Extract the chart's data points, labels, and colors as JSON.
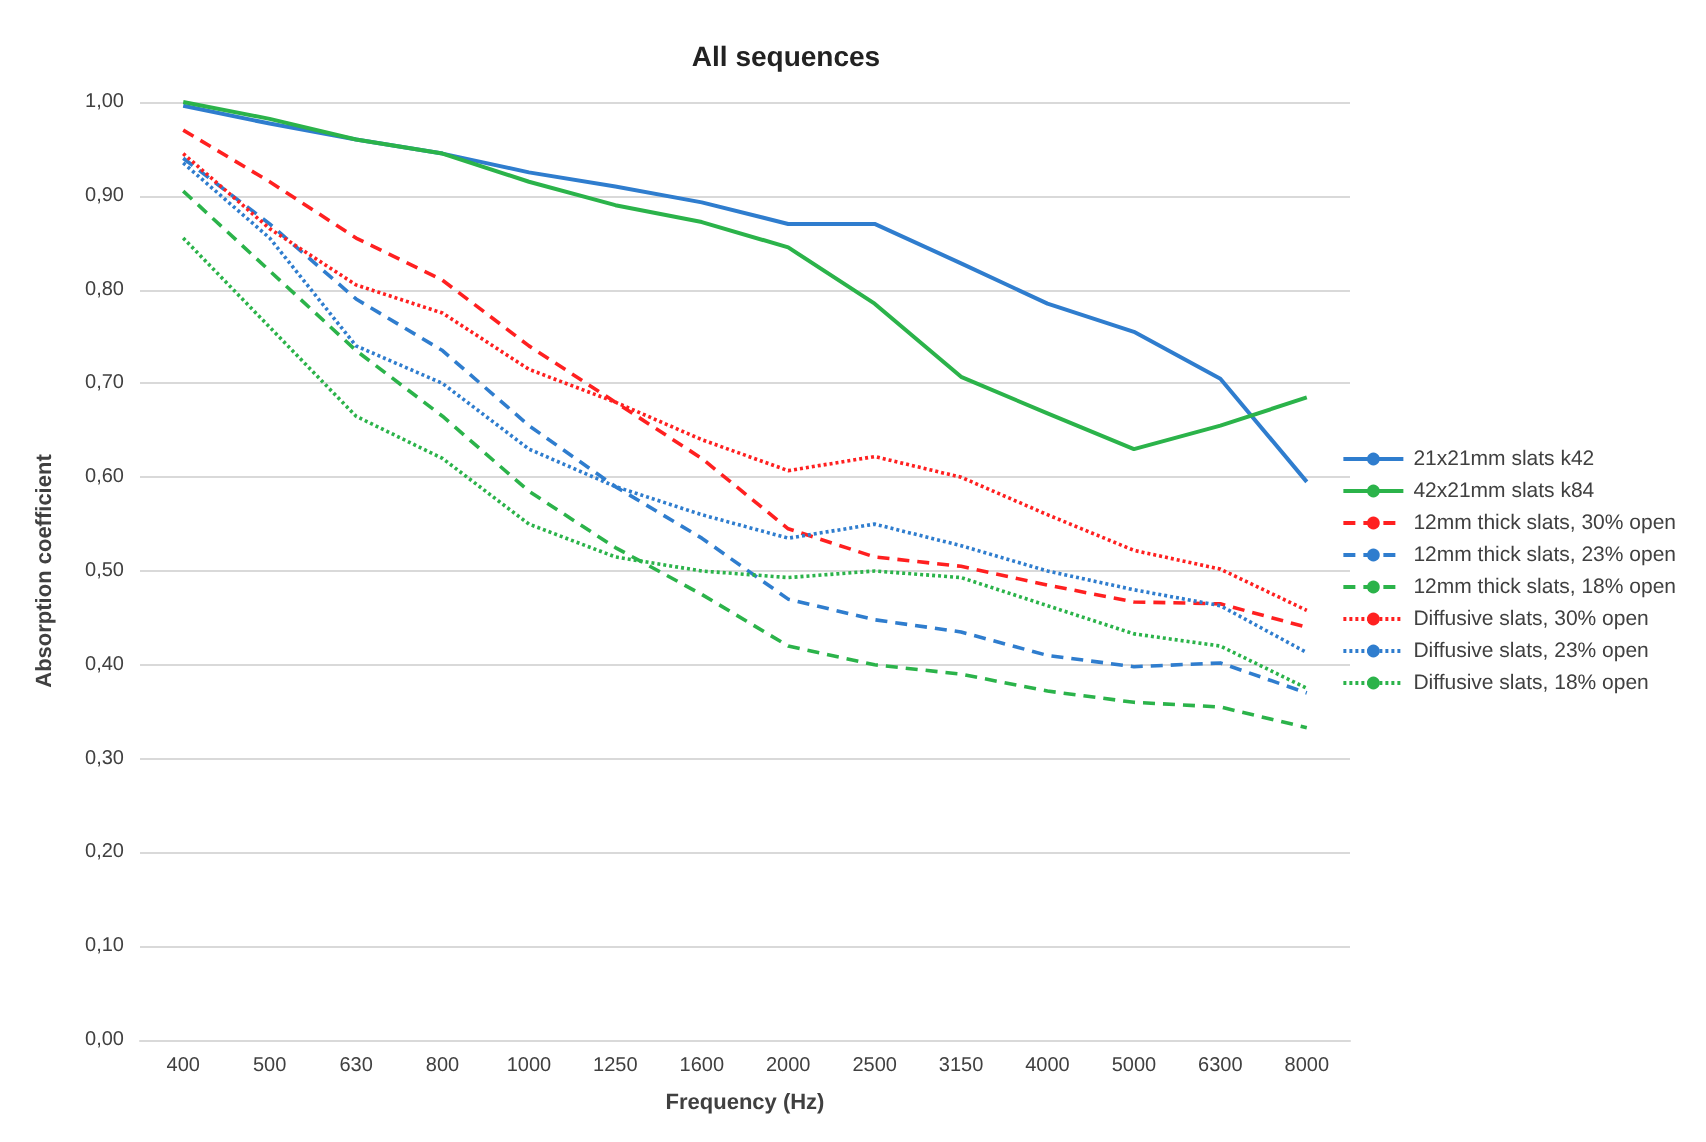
{
  "chart_data": {
    "type": "line",
    "title": "All sequences",
    "xlabel": "Frequency (Hz)",
    "ylabel": "Absorption coefficient",
    "categories": [
      "400",
      "500",
      "630",
      "800",
      "1000",
      "1250",
      "1600",
      "2000",
      "2500",
      "3150",
      "4000",
      "5000",
      "6300",
      "8000"
    ],
    "ylim": [
      0,
      1
    ],
    "yticks": [
      {
        "value": 0,
        "label": "0,00"
      },
      {
        "value": 0.1,
        "label": "0,10"
      },
      {
        "value": 0.2,
        "label": "0,20"
      },
      {
        "value": 0.3,
        "label": "0,30"
      },
      {
        "value": 0.4,
        "label": "0,40"
      },
      {
        "value": 0.5,
        "label": "0,50"
      },
      {
        "value": 0.6,
        "label": "0,60"
      },
      {
        "value": 0.7,
        "label": "0,70"
      },
      {
        "value": 0.8,
        "label": "0,80"
      },
      {
        "value": 0.9,
        "label": "0,90"
      },
      {
        "value": 1,
        "label": "1,00"
      }
    ],
    "grid": "y",
    "legend": "right",
    "marker": "none",
    "series": [
      {
        "name": "21x21mm slats k42",
        "color": "#2f7dce",
        "line_style": "solid",
        "values": [
          0.996,
          0.977,
          0.96,
          0.945,
          0.925,
          0.91,
          0.893,
          0.87,
          0.87,
          0.828,
          0.785,
          0.755,
          0.705,
          0.595
        ]
      },
      {
        "name": "42x21mm slats k84",
        "color": "#2bb34a",
        "line_style": "solid",
        "values": [
          1.0,
          0.982,
          0.96,
          0.945,
          0.915,
          0.89,
          0.872,
          0.845,
          0.785,
          0.707,
          0.668,
          0.63,
          0.655,
          0.685
        ]
      },
      {
        "name": "12mm thick slats, 30% open",
        "color": "#ff2020",
        "line_style": "dashed",
        "values": [
          0.97,
          0.915,
          0.855,
          0.81,
          0.74,
          0.68,
          0.62,
          0.545,
          0.515,
          0.505,
          0.485,
          0.467,
          0.465,
          0.44
        ]
      },
      {
        "name": "12mm thick slats, 23% open",
        "color": "#2f7dce",
        "line_style": "dashed",
        "values": [
          0.94,
          0.87,
          0.79,
          0.735,
          0.655,
          0.59,
          0.535,
          0.47,
          0.448,
          0.435,
          0.41,
          0.398,
          0.402,
          0.37
        ]
      },
      {
        "name": "12mm thick slats, 18% open",
        "color": "#2bb34a",
        "line_style": "dashed",
        "values": [
          0.905,
          0.82,
          0.735,
          0.665,
          0.585,
          0.525,
          0.475,
          0.42,
          0.4,
          0.39,
          0.372,
          0.36,
          0.355,
          0.333
        ]
      },
      {
        "name": "Diffusive slats, 30% open",
        "color": "#ff2020",
        "line_style": "dotted",
        "values": [
          0.945,
          0.865,
          0.805,
          0.775,
          0.715,
          0.68,
          0.64,
          0.607,
          0.622,
          0.6,
          0.56,
          0.522,
          0.502,
          0.458
        ]
      },
      {
        "name": "Diffusive slats, 23% open",
        "color": "#2f7dce",
        "line_style": "dotted",
        "values": [
          0.935,
          0.855,
          0.74,
          0.7,
          0.63,
          0.59,
          0.56,
          0.535,
          0.55,
          0.527,
          0.5,
          0.48,
          0.463,
          0.413
        ]
      },
      {
        "name": "Diffusive slats, 18% open",
        "color": "#2bb34a",
        "line_style": "dotted",
        "values": [
          0.855,
          0.76,
          0.665,
          0.62,
          0.55,
          0.515,
          0.5,
          0.493,
          0.5,
          0.493,
          0.463,
          0.433,
          0.42,
          0.375
        ]
      }
    ]
  }
}
